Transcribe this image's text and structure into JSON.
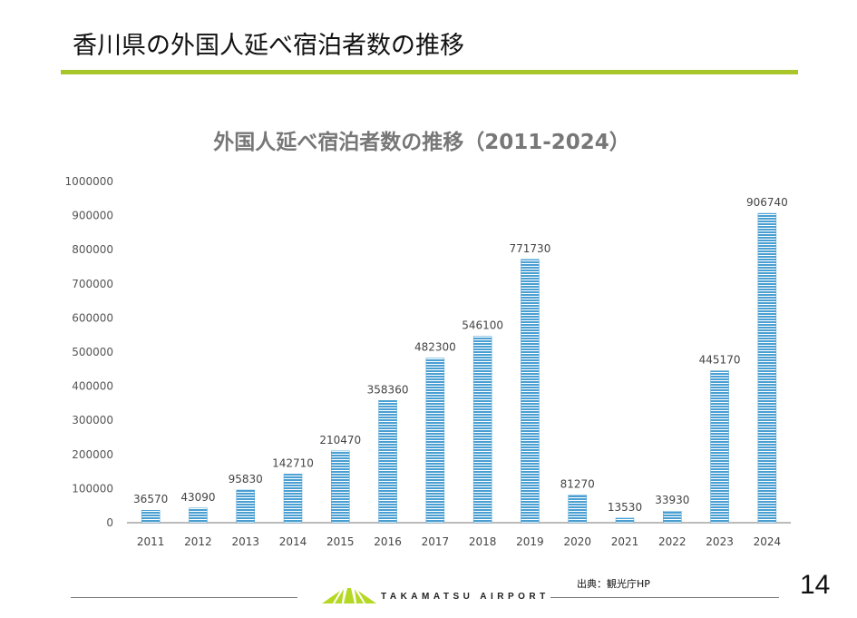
{
  "slide_title": "香川県の外国人延べ宿泊者数の推移",
  "chart_data": {
    "type": "bar",
    "title": "外国人延べ宿泊者数の推移（2011-2024）",
    "categories": [
      "2011",
      "2012",
      "2013",
      "2014",
      "2015",
      "2016",
      "2017",
      "2018",
      "2019",
      "2020",
      "2021",
      "2022",
      "2023",
      "2024"
    ],
    "values": [
      36570,
      43090,
      95830,
      142710,
      210470,
      358360,
      482300,
      546100,
      771730,
      81270,
      13530,
      33930,
      445170,
      906740
    ],
    "ylim": [
      0,
      1000000
    ],
    "yticks": [
      0,
      100000,
      200000,
      300000,
      400000,
      500000,
      600000,
      700000,
      800000,
      900000,
      1000000
    ],
    "xlabel": "",
    "ylabel": "",
    "grid": false,
    "bar_color": "#5aa9d6"
  },
  "footer": {
    "source": "出典：観光庁HP",
    "logo_text": "TAKAMATSU AIRPORT",
    "page_number": "14"
  }
}
